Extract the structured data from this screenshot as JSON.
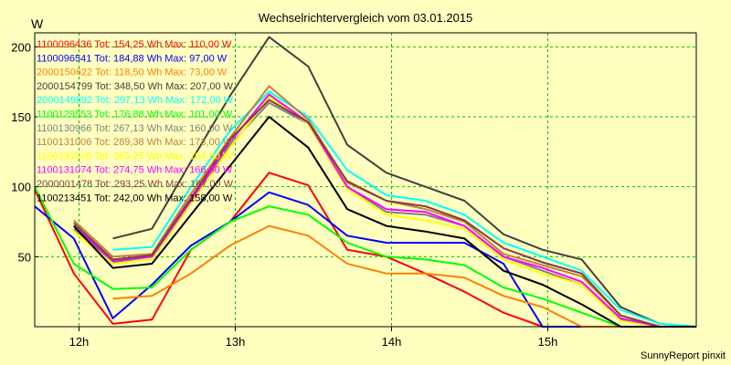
{
  "chart_data": {
    "type": "line",
    "title": "Wechselrichtervergleich vom 03.01.2015",
    "ylabel": "W",
    "xlabel": "",
    "footer": "SunnyReport pinxit",
    "x_range": [
      "11:28",
      "15:42"
    ],
    "ylim": [
      0,
      210
    ],
    "y_ticks": [
      50,
      100,
      150,
      200
    ],
    "x_ticks": [
      {
        "t": "11:45",
        "label": "12h"
      },
      {
        "t": "12:45",
        "label": "13h"
      },
      {
        "t": "13:45",
        "label": "14h"
      },
      {
        "t": "14:45",
        "label": "15h"
      }
    ],
    "grid": true,
    "legend_position": "top-left",
    "times": [
      "11:28",
      "11:43",
      "11:58",
      "12:13",
      "12:28",
      "12:43",
      "12:58",
      "13:13",
      "13:28",
      "13:43",
      "13:58",
      "14:13",
      "14:28",
      "14:43",
      "14:58",
      "15:13",
      "15:28",
      "15:42"
    ],
    "series": [
      {
        "name": "1100096436 Tot: 154,25 Wh Max: 110,00 W",
        "color": "#ff0000",
        "values": [
          98,
          38,
          2,
          5,
          55,
          75,
          110,
          101,
          55,
          50,
          38,
          25,
          10,
          0,
          0,
          0,
          0,
          0
        ]
      },
      {
        "name": "1100096541 Tot: 184,88 Wh Max: 97,00 W",
        "color": "#0000ff",
        "values": [
          86,
          63,
          6,
          30,
          58,
          75,
          96,
          87,
          65,
          60,
          60,
          60,
          45,
          0,
          0,
          0,
          0,
          0
        ]
      },
      {
        "name": "2000150622 Tot: 118,50 Wh Max: 73,00 W",
        "color": "#ff8000",
        "values": [
          null,
          null,
          20,
          22,
          38,
          58,
          72,
          65,
          45,
          38,
          38,
          35,
          22,
          14,
          0,
          0,
          0,
          0
        ]
      },
      {
        "name": "2000154799 Tot: 348,50 Wh Max: 207,00 W",
        "color": "#404040",
        "values": [
          null,
          null,
          63,
          70,
          118,
          165,
          207,
          186,
          130,
          110,
          100,
          90,
          66,
          55,
          48,
          14,
          2,
          0
        ]
      },
      {
        "name": "2000149892 Tot: 297,13 Wh Max: 172,00 W",
        "color": "#00ffff",
        "values": [
          null,
          null,
          55,
          57,
          100,
          140,
          168,
          150,
          112,
          94,
          90,
          80,
          60,
          50,
          40,
          12,
          2,
          0
        ]
      },
      {
        "name": "1100129553 Tot: 176,88 Wh Max: 101,00 W",
        "color": "#00ff00",
        "values": [
          100,
          45,
          27,
          28,
          55,
          75,
          86,
          80,
          60,
          50,
          48,
          44,
          28,
          20,
          10,
          0,
          0,
          0
        ]
      },
      {
        "name": "1100130966 Tot: 267,13 Wh Max: 160,00 W",
        "color": "#808080",
        "values": [
          null,
          70,
          46,
          50,
          90,
          130,
          160,
          145,
          100,
          82,
          80,
          72,
          50,
          40,
          30,
          5,
          0,
          0
        ]
      },
      {
        "name": "1100131006 Tot: 289,38 Wh Max: 173,00 W",
        "color": "#c08040",
        "values": [
          null,
          76,
          50,
          52,
          95,
          135,
          172,
          148,
          103,
          90,
          84,
          75,
          52,
          44,
          36,
          8,
          0,
          0
        ]
      },
      {
        "name": "1100131025 Tot: 265,25 Wh Max: 164,00 W",
        "color": "#ffff00",
        "values": [
          null,
          68,
          45,
          48,
          88,
          128,
          164,
          145,
          98,
          80,
          76,
          70,
          48,
          38,
          30,
          4,
          0,
          0
        ]
      },
      {
        "name": "1100131074 Tot: 274,75 Wh Max: 166,00 W",
        "color": "#ff00ff",
        "values": [
          null,
          72,
          47,
          50,
          90,
          132,
          166,
          146,
          100,
          84,
          82,
          72,
          50,
          42,
          32,
          6,
          0,
          0
        ]
      },
      {
        "name": "2000001478 Tot: 293,25 Wh Max: 167,00 W",
        "color": "#804040",
        "values": [
          null,
          74,
          48,
          51,
          92,
          134,
          162,
          146,
          104,
          90,
          86,
          76,
          56,
          46,
          38,
          8,
          0,
          0
        ]
      },
      {
        "name": "1100213451 Tot: 242,00 Wh Max: 158,00 W",
        "color": "#000000",
        "values": [
          null,
          72,
          42,
          45,
          80,
          115,
          150,
          128,
          84,
          72,
          68,
          63,
          40,
          30,
          16,
          0,
          0,
          0
        ]
      }
    ]
  }
}
